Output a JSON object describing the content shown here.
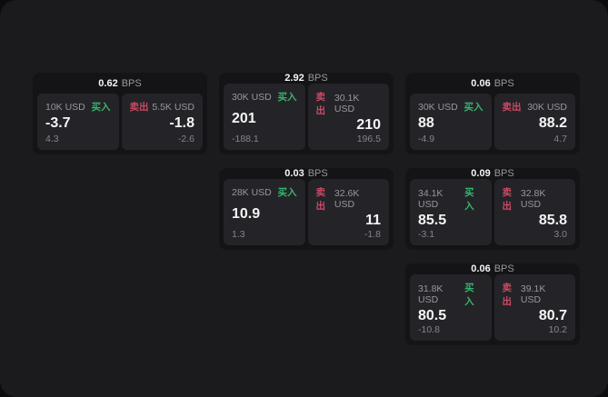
{
  "colors": {
    "outer_bg": "#0c0c0d",
    "panel_bg": "#1b1b1e",
    "card_bg": "#141417",
    "tile_bg": "#242428",
    "text_primary": "#f5f5f7",
    "text_secondary": "#98989c",
    "text_muted": "#84848a",
    "buy_green": "#36b56e",
    "sell_red": "#cc4964"
  },
  "labels": {
    "bps_unit": "BPS",
    "buy": "买入",
    "sell": "卖出"
  },
  "cards": [
    {
      "bps": "0.62",
      "grid": {
        "row": 1,
        "col": 1
      },
      "buy": {
        "amount": "10K USD",
        "price": "-3.7",
        "delta": "4.3"
      },
      "sell": {
        "amount": "5.5K USD",
        "price": "-1.8",
        "delta": "-2.6"
      }
    },
    {
      "bps": "2.92",
      "grid": {
        "row": 1,
        "col": 2
      },
      "buy": {
        "amount": "30K USD",
        "price": "201",
        "delta": "-188.1"
      },
      "sell": {
        "amount": "30.1K USD",
        "price": "210",
        "delta": "196.5"
      }
    },
    {
      "bps": "0.06",
      "grid": {
        "row": 1,
        "col": 3
      },
      "buy": {
        "amount": "30K USD",
        "price": "88",
        "delta": "-4.9"
      },
      "sell": {
        "amount": "30K USD",
        "price": "88.2",
        "delta": "4.7"
      }
    },
    {
      "bps": "0.03",
      "grid": {
        "row": 2,
        "col": 2
      },
      "buy": {
        "amount": "28K USD",
        "price": "10.9",
        "delta": "1.3"
      },
      "sell": {
        "amount": "32.6K USD",
        "price": "11",
        "delta": "-1.8"
      }
    },
    {
      "bps": "0.09",
      "grid": {
        "row": 2,
        "col": 3
      },
      "buy": {
        "amount": "34.1K USD",
        "price": "85.5",
        "delta": "-3.1"
      },
      "sell": {
        "amount": "32.8K USD",
        "price": "85.8",
        "delta": "3.0"
      }
    },
    {
      "bps": "0.06",
      "grid": {
        "row": 3,
        "col": 3
      },
      "buy": {
        "amount": "31.8K USD",
        "price": "80.5",
        "delta": "-10.8"
      },
      "sell": {
        "amount": "39.1K USD",
        "price": "80.7",
        "delta": "10.2"
      }
    }
  ]
}
